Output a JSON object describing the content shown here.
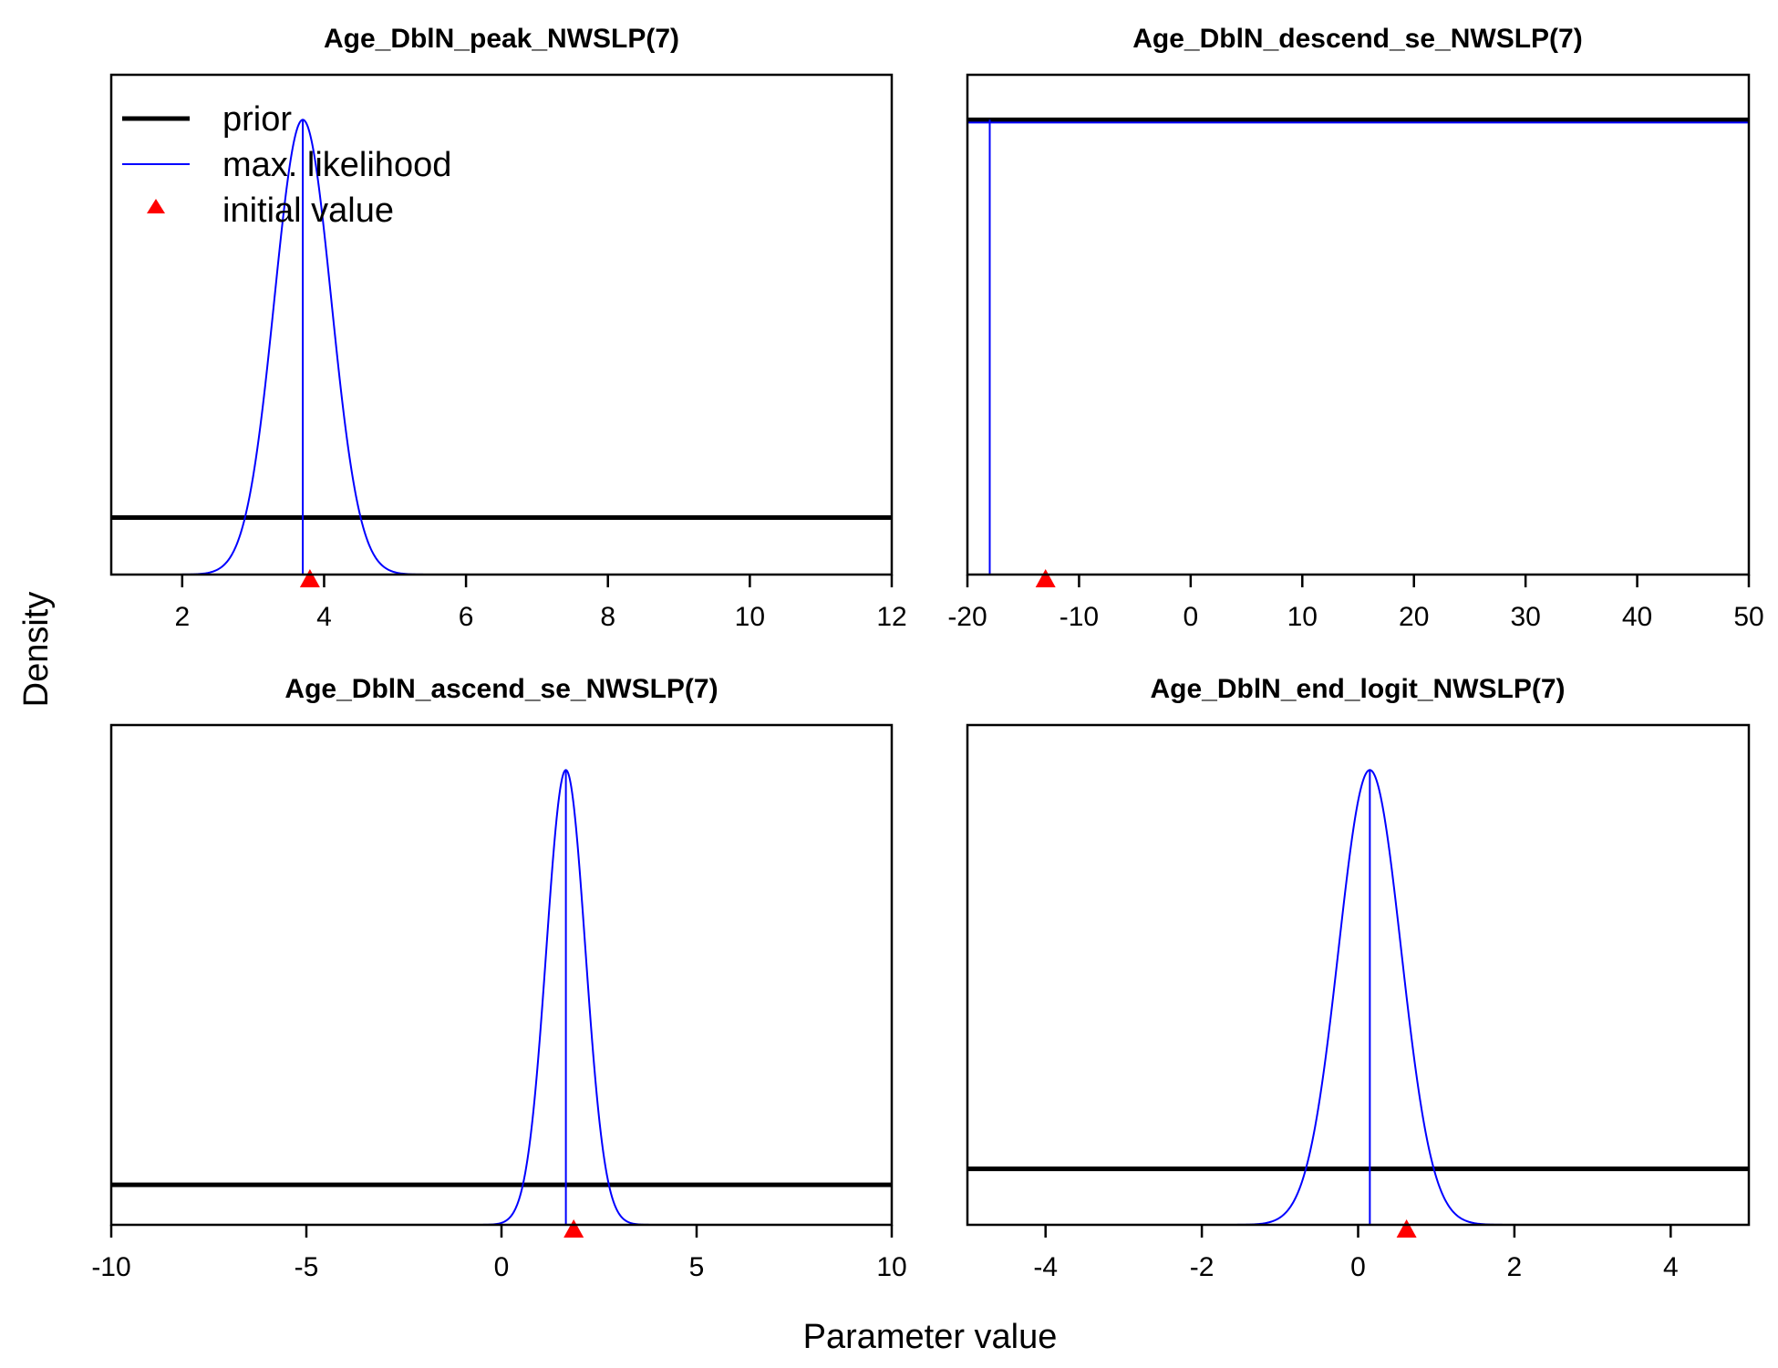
{
  "figure": {
    "ylabel": "Density",
    "xlabel": "Parameter value"
  },
  "legend": {
    "position": "top-left",
    "entries": [
      {
        "label": "prior",
        "kind": "thick-line",
        "color": "#000000"
      },
      {
        "label": "max. likelihood",
        "kind": "thin-line",
        "color": "#0000ff"
      },
      {
        "label": "initial value",
        "kind": "triangle",
        "color": "#ff0000"
      }
    ]
  },
  "colors": {
    "prior": "#000000",
    "max_likelihood": "#0000ff",
    "initial_value": "#ff0000"
  },
  "chart_data": [
    {
      "type": "line",
      "title": "Age_DblN_peak_NWSLP(7)",
      "xlim": [
        1,
        12
      ],
      "xticks": [
        2,
        4,
        6,
        8,
        10,
        12
      ],
      "xtick_labels": [
        "2",
        "4",
        "6",
        "8",
        "10",
        "12"
      ],
      "prior_level": 0.114,
      "mle": {
        "mean": 3.7,
        "sd": 0.4
      },
      "initial_value": 3.8
    },
    {
      "type": "line",
      "title": "Age_DblN_descend_se_NWSLP(7)",
      "xlim": [
        -20,
        50
      ],
      "xticks": [
        -20,
        -10,
        0,
        10,
        20,
        30,
        40,
        50
      ],
      "xtick_labels": [
        "-20",
        "-10",
        "0",
        "10",
        "20",
        "30",
        "40",
        "50"
      ],
      "prior_level": 0.91,
      "mle_value": -18,
      "initial_value": -13
    },
    {
      "type": "line",
      "title": "Age_DblN_ascend_se_NWSLP(7)",
      "xlim": [
        -10,
        10
      ],
      "xticks": [
        -10,
        -5,
        0,
        5,
        10
      ],
      "xtick_labels": [
        "-10",
        "-5",
        "0",
        "5",
        "10"
      ],
      "prior_level": 0.08,
      "mle": {
        "mean": 1.65,
        "sd": 0.5
      },
      "initial_value": 1.85
    },
    {
      "type": "line",
      "title": "Age_DblN_end_logit_NWSLP(7)",
      "xlim": [
        -5,
        5
      ],
      "xticks": [
        -4,
        -2,
        0,
        2,
        4
      ],
      "xtick_labels": [
        "-4",
        "-2",
        "0",
        "2",
        "4"
      ],
      "prior_level": 0.112,
      "mle": {
        "mean": 0.15,
        "sd": 0.4
      },
      "initial_value": 0.62
    }
  ]
}
